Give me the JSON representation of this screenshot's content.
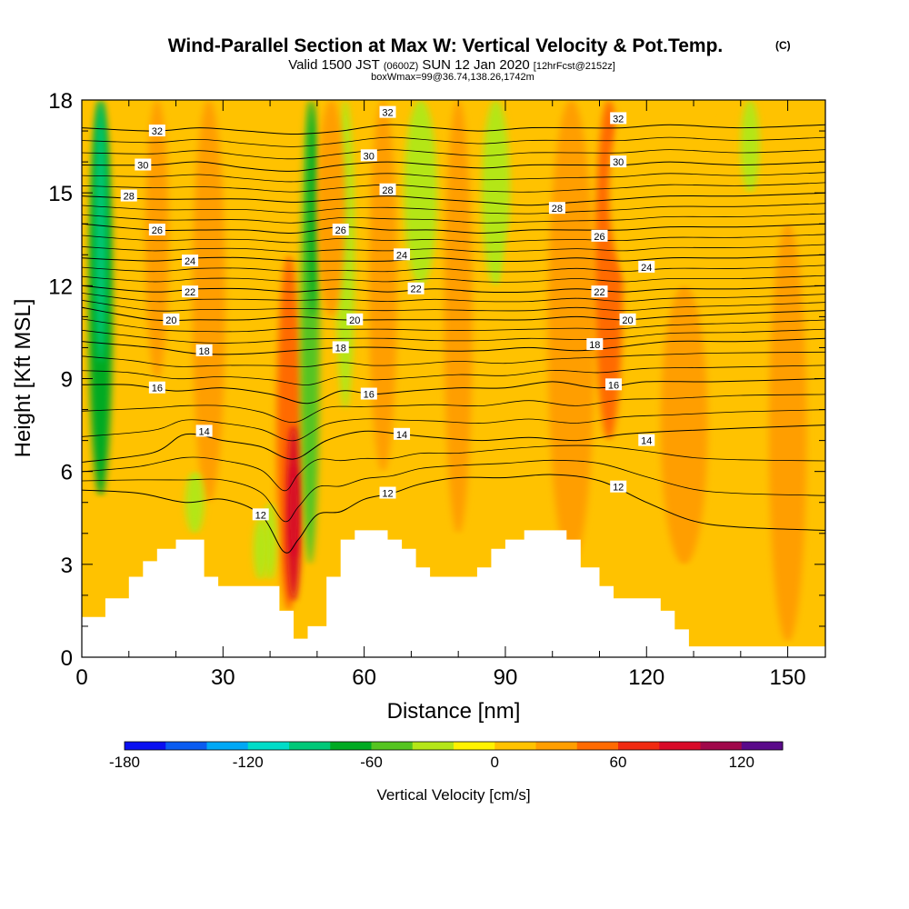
{
  "header": {
    "title": "Wind-Parallel Section at Max W: Vertical Velocity & Pot.Temp.",
    "copyright": "(C)",
    "valid_pre": "Valid 1500 JST",
    "valid_utc": "(0600Z)",
    "valid_date": "SUN 12 Jan 2020",
    "forecast": "[12hrFcst@2152z]",
    "box": "boxWmax=99@36.74,138.26,1742m"
  },
  "chart_data": {
    "type": "heatmap",
    "xlabel": "Distance [nm]",
    "ylabel": "Height [Kft MSL]",
    "xlim": [
      0,
      158
    ],
    "ylim": [
      0,
      18
    ],
    "x_ticks": [
      0,
      30,
      60,
      90,
      120,
      150
    ],
    "y_ticks": [
      0,
      3,
      6,
      9,
      12,
      15,
      18
    ],
    "colorbar": {
      "label": "Vertical Velocity [cm/s]",
      "min": -180,
      "max": 140,
      "step": 20,
      "tick_labels": [
        -180,
        -120,
        -60,
        0,
        60,
        120
      ],
      "colors": [
        "#0a10f0",
        "#0a5cf0",
        "#00a8f5",
        "#00dcc8",
        "#00c878",
        "#00aa22",
        "#55c420",
        "#b4e618",
        "#fff200",
        "#ffc200",
        "#ff9e00",
        "#ff6a00",
        "#f02a10",
        "#d80a28",
        "#a0084a",
        "#5a0a8a"
      ]
    },
    "terrain_profile": [
      [
        0,
        1.3
      ],
      [
        5,
        1.3
      ],
      [
        5,
        1.9
      ],
      [
        10,
        1.9
      ],
      [
        10,
        2.6
      ],
      [
        13,
        2.6
      ],
      [
        13,
        3.1
      ],
      [
        16,
        3.1
      ],
      [
        16,
        3.5
      ],
      [
        20,
        3.5
      ],
      [
        20,
        3.8
      ],
      [
        26,
        3.8
      ],
      [
        26,
        2.6
      ],
      [
        29,
        2.6
      ],
      [
        29,
        2.3
      ],
      [
        42,
        2.3
      ],
      [
        42,
        1.5
      ],
      [
        45,
        1.5
      ],
      [
        45,
        0.6
      ],
      [
        48,
        0.6
      ],
      [
        48,
        1.0
      ],
      [
        52,
        1.0
      ],
      [
        52,
        2.6
      ],
      [
        55,
        2.6
      ],
      [
        55,
        3.8
      ],
      [
        58,
        3.8
      ],
      [
        58,
        4.1
      ],
      [
        65,
        4.1
      ],
      [
        65,
        3.8
      ],
      [
        68,
        3.8
      ],
      [
        68,
        3.5
      ],
      [
        71,
        3.5
      ],
      [
        71,
        2.9
      ],
      [
        74,
        2.9
      ],
      [
        74,
        2.6
      ],
      [
        84,
        2.6
      ],
      [
        84,
        2.9
      ],
      [
        87,
        2.9
      ],
      [
        87,
        3.5
      ],
      [
        90,
        3.5
      ],
      [
        90,
        3.8
      ],
      [
        94,
        3.8
      ],
      [
        94,
        4.1
      ],
      [
        103,
        4.1
      ],
      [
        103,
        3.8
      ],
      [
        106,
        3.8
      ],
      [
        106,
        2.9
      ],
      [
        110,
        2.9
      ],
      [
        110,
        2.3
      ],
      [
        113,
        2.3
      ],
      [
        113,
        1.9
      ],
      [
        123,
        1.9
      ],
      [
        123,
        1.5
      ],
      [
        126,
        1.5
      ],
      [
        126,
        0.9
      ],
      [
        129,
        0.9
      ],
      [
        129,
        0.35
      ],
      [
        158,
        0.35
      ]
    ],
    "w_features": [
      {
        "x": 4,
        "w": 2.5,
        "y0": 5.2,
        "y1": 18,
        "value": -70
      },
      {
        "x": 4,
        "w": 1.2,
        "y0": 9.5,
        "y1": 18,
        "value": -100
      },
      {
        "x": 16,
        "w": 2.5,
        "y0": 9,
        "y1": 18,
        "value": 30
      },
      {
        "x": 27,
        "w": 3.5,
        "y0": 5,
        "y1": 18,
        "value": 30
      },
      {
        "x": 44,
        "w": 2.6,
        "y0": 1.5,
        "y1": 13,
        "value": 50
      },
      {
        "x": 45,
        "w": 1.5,
        "y0": 1.8,
        "y1": 7.5,
        "value": 80
      },
      {
        "x": 45,
        "w": 0.8,
        "y0": 3.2,
        "y1": 6.2,
        "value": 90
      },
      {
        "x": 48.5,
        "w": 2.0,
        "y0": 3,
        "y1": 18,
        "value": -60
      },
      {
        "x": 49,
        "w": 0.9,
        "y0": 11,
        "y1": 18,
        "value": -80
      },
      {
        "x": 40,
        "w": 1.4,
        "y0": 2.5,
        "y1": 5,
        "value": -40
      },
      {
        "x": 56,
        "w": 2.0,
        "y0": 8,
        "y1": 18,
        "value": -40
      },
      {
        "x": 53,
        "w": 3,
        "y0": 11,
        "y1": 18,
        "value": 30
      },
      {
        "x": 64,
        "w": 3,
        "y0": 6,
        "y1": 18,
        "value": 30
      },
      {
        "x": 72,
        "w": 3.5,
        "y0": 12,
        "y1": 18,
        "value": -30
      },
      {
        "x": 80,
        "w": 3,
        "y0": 4,
        "y1": 18,
        "value": 30
      },
      {
        "x": 88,
        "w": 3,
        "y0": 12,
        "y1": 18,
        "value": -30
      },
      {
        "x": 92,
        "w": 3,
        "y0": 6,
        "y1": 14,
        "value": 5
      },
      {
        "x": 104,
        "w": 5,
        "y0": 3,
        "y1": 18,
        "value": 30
      },
      {
        "x": 112,
        "w": 3,
        "y0": 7,
        "y1": 18,
        "value": 40
      },
      {
        "x": 128,
        "w": 5,
        "y0": 3,
        "y1": 12,
        "value": 30
      },
      {
        "x": 150,
        "w": 4,
        "y0": 0.5,
        "y1": 14,
        "value": 30
      },
      {
        "x": 140,
        "w": 6,
        "y0": 12,
        "y1": 18,
        "value": 5
      },
      {
        "x": 118,
        "w": 6,
        "y0": 12,
        "y1": 18,
        "value": 5
      },
      {
        "x": 142,
        "w": 2,
        "y0": 15,
        "y1": 18,
        "value": -30
      },
      {
        "x": 24,
        "w": 2,
        "y0": 4,
        "y1": 6,
        "value": -30
      },
      {
        "x": 38,
        "w": 1.5,
        "y0": 2.5,
        "y1": 4.5,
        "value": -40
      }
    ],
    "theta_contours": [
      {
        "level": 12,
        "pts": [
          [
            0,
            5.4
          ],
          [
            12,
            5.3
          ],
          [
            22,
            5.0
          ],
          [
            30,
            5.1
          ],
          [
            38,
            4.6
          ],
          [
            43,
            3.4
          ],
          [
            46,
            3.8
          ],
          [
            50,
            4.6
          ],
          [
            55,
            4.7
          ],
          [
            60,
            5.1
          ],
          [
            66,
            5.3
          ],
          [
            72,
            5.6
          ],
          [
            80,
            5.8
          ],
          [
            90,
            5.8
          ],
          [
            100,
            5.9
          ],
          [
            110,
            5.7
          ],
          [
            120,
            5.0
          ],
          [
            130,
            4.4
          ],
          [
            140,
            4.2
          ],
          [
            158,
            4.1
          ]
        ]
      },
      {
        "level": 14,
        "pts": [
          [
            0,
            6.3
          ],
          [
            15,
            6.6
          ],
          [
            22,
            7.2
          ],
          [
            30,
            7.0
          ],
          [
            38,
            6.8
          ],
          [
            45,
            6.4
          ],
          [
            52,
            7.0
          ],
          [
            60,
            7.3
          ],
          [
            68,
            7.2
          ],
          [
            75,
            7.1
          ],
          [
            85,
            7.0
          ],
          [
            95,
            7.1
          ],
          [
            105,
            7.0
          ],
          [
            115,
            7.2
          ],
          [
            125,
            7.3
          ],
          [
            140,
            7.4
          ],
          [
            158,
            7.5
          ]
        ]
      },
      {
        "level": 16,
        "pts": [
          [
            0,
            8.8
          ],
          [
            10,
            8.8
          ],
          [
            20,
            8.6
          ],
          [
            30,
            8.7
          ],
          [
            40,
            8.5
          ],
          [
            48,
            8.2
          ],
          [
            55,
            8.6
          ],
          [
            62,
            8.5
          ],
          [
            70,
            8.6
          ],
          [
            80,
            8.7
          ],
          [
            90,
            8.7
          ],
          [
            100,
            8.9
          ],
          [
            110,
            8.7
          ],
          [
            120,
            8.9
          ],
          [
            135,
            8.9
          ],
          [
            158,
            9.0
          ]
        ]
      },
      {
        "level": 18,
        "pts": [
          [
            0,
            10.2
          ],
          [
            15,
            10.0
          ],
          [
            25,
            9.8
          ],
          [
            35,
            9.8
          ],
          [
            45,
            9.9
          ],
          [
            55,
            10.0
          ],
          [
            65,
            10.0
          ],
          [
            75,
            9.9
          ],
          [
            85,
            9.9
          ],
          [
            95,
            10.0
          ],
          [
            105,
            9.9
          ],
          [
            113,
            10.0
          ],
          [
            125,
            10.2
          ],
          [
            140,
            10.2
          ],
          [
            158,
            10.3
          ]
        ]
      },
      {
        "level": 20,
        "pts": [
          [
            0,
            11.3
          ],
          [
            15,
            10.9
          ],
          [
            25,
            10.9
          ],
          [
            35,
            10.9
          ],
          [
            45,
            11.0
          ],
          [
            55,
            10.9
          ],
          [
            65,
            10.9
          ],
          [
            75,
            10.9
          ],
          [
            85,
            10.9
          ],
          [
            95,
            10.9
          ],
          [
            105,
            11.0
          ],
          [
            115,
            10.9
          ],
          [
            125,
            11.0
          ],
          [
            140,
            11.1
          ],
          [
            158,
            11.2
          ]
        ]
      },
      {
        "level": 22,
        "pts": [
          [
            0,
            12.0
          ],
          [
            15,
            11.8
          ],
          [
            25,
            11.9
          ],
          [
            35,
            11.9
          ],
          [
            45,
            11.8
          ],
          [
            55,
            11.9
          ],
          [
            65,
            11.8
          ],
          [
            75,
            11.9
          ],
          [
            85,
            11.8
          ],
          [
            95,
            11.8
          ],
          [
            105,
            11.9
          ],
          [
            115,
            11.8
          ],
          [
            125,
            11.9
          ],
          [
            140,
            11.9
          ],
          [
            158,
            12.0
          ]
        ]
      },
      {
        "level": 24,
        "pts": [
          [
            0,
            12.9
          ],
          [
            15,
            12.8
          ],
          [
            25,
            12.9
          ],
          [
            35,
            12.9
          ],
          [
            45,
            12.8
          ],
          [
            55,
            12.8
          ],
          [
            65,
            12.8
          ],
          [
            75,
            12.9
          ],
          [
            85,
            12.8
          ],
          [
            95,
            12.8
          ],
          [
            105,
            12.9
          ],
          [
            115,
            12.8
          ],
          [
            125,
            12.9
          ],
          [
            140,
            12.9
          ],
          [
            158,
            13.0
          ]
        ]
      },
      {
        "level": 26,
        "pts": [
          [
            0,
            14.0
          ],
          [
            15,
            13.8
          ],
          [
            25,
            13.8
          ],
          [
            35,
            13.8
          ],
          [
            45,
            13.7
          ],
          [
            55,
            13.9
          ],
          [
            65,
            13.8
          ],
          [
            75,
            13.8
          ],
          [
            85,
            13.7
          ],
          [
            95,
            13.8
          ],
          [
            105,
            13.8
          ],
          [
            115,
            13.8
          ],
          [
            125,
            13.9
          ],
          [
            140,
            13.9
          ],
          [
            158,
            14.0
          ]
        ]
      },
      {
        "level": 28,
        "pts": [
          [
            0,
            14.9
          ],
          [
            15,
            14.8
          ],
          [
            25,
            14.8
          ],
          [
            35,
            14.8
          ],
          [
            45,
            14.7
          ],
          [
            55,
            14.8
          ],
          [
            65,
            14.9
          ],
          [
            75,
            14.8
          ],
          [
            85,
            14.7
          ],
          [
            95,
            14.6
          ],
          [
            105,
            14.7
          ],
          [
            115,
            14.8
          ],
          [
            125,
            14.9
          ],
          [
            140,
            14.9
          ],
          [
            158,
            15.0
          ]
        ]
      },
      {
        "level": 30,
        "pts": [
          [
            0,
            15.9
          ],
          [
            15,
            15.9
          ],
          [
            25,
            16.0
          ],
          [
            35,
            15.8
          ],
          [
            45,
            15.7
          ],
          [
            55,
            15.9
          ],
          [
            65,
            16.0
          ],
          [
            75,
            15.9
          ],
          [
            85,
            15.8
          ],
          [
            95,
            15.9
          ],
          [
            105,
            15.9
          ],
          [
            115,
            15.9
          ],
          [
            125,
            16.0
          ],
          [
            140,
            15.9
          ],
          [
            158,
            16.0
          ]
        ]
      },
      {
        "level": 32,
        "pts": [
          [
            0,
            17.1
          ],
          [
            15,
            17.0
          ],
          [
            25,
            17.1
          ],
          [
            35,
            17.0
          ],
          [
            45,
            16.9
          ],
          [
            55,
            17.0
          ],
          [
            65,
            17.2
          ],
          [
            75,
            17.1
          ],
          [
            85,
            17.0
          ],
          [
            95,
            17.1
          ],
          [
            105,
            17.1
          ],
          [
            115,
            17.1
          ],
          [
            125,
            17.2
          ],
          [
            140,
            17.1
          ],
          [
            158,
            17.2
          ]
        ]
      }
    ],
    "theta_minor_offsets": [
      0.33,
      0.66
    ],
    "contour_labels": [
      {
        "text": "32",
        "x": 16,
        "y": 17.0
      },
      {
        "text": "32",
        "x": 65,
        "y": 17.6
      },
      {
        "text": "32",
        "x": 114,
        "y": 17.4
      },
      {
        "text": "30",
        "x": 13,
        "y": 15.9
      },
      {
        "text": "30",
        "x": 61,
        "y": 16.2
      },
      {
        "text": "30",
        "x": 114,
        "y": 16.0
      },
      {
        "text": "28",
        "x": 10,
        "y": 14.9
      },
      {
        "text": "28",
        "x": 65,
        "y": 15.1
      },
      {
        "text": "28",
        "x": 101,
        "y": 14.5
      },
      {
        "text": "26",
        "x": 16,
        "y": 13.8
      },
      {
        "text": "26",
        "x": 55,
        "y": 13.8
      },
      {
        "text": "26",
        "x": 110,
        "y": 13.6
      },
      {
        "text": "24",
        "x": 23,
        "y": 12.8
      },
      {
        "text": "24",
        "x": 68,
        "y": 13.0
      },
      {
        "text": "24",
        "x": 120,
        "y": 12.6
      },
      {
        "text": "22",
        "x": 23,
        "y": 11.8
      },
      {
        "text": "22",
        "x": 71,
        "y": 11.9
      },
      {
        "text": "22",
        "x": 110,
        "y": 11.8
      },
      {
        "text": "20",
        "x": 19,
        "y": 10.9
      },
      {
        "text": "20",
        "x": 58,
        "y": 10.9
      },
      {
        "text": "20",
        "x": 116,
        "y": 10.9
      },
      {
        "text": "18",
        "x": 26,
        "y": 9.9
      },
      {
        "text": "18",
        "x": 55,
        "y": 10.0
      },
      {
        "text": "18",
        "x": 109,
        "y": 10.1
      },
      {
        "text": "16",
        "x": 16,
        "y": 8.7
      },
      {
        "text": "16",
        "x": 61,
        "y": 8.5
      },
      {
        "text": "16",
        "x": 113,
        "y": 8.8
      },
      {
        "text": "14",
        "x": 26,
        "y": 7.3
      },
      {
        "text": "14",
        "x": 68,
        "y": 7.2
      },
      {
        "text": "14",
        "x": 120,
        "y": 7.0
      },
      {
        "text": "12",
        "x": 38,
        "y": 4.6
      },
      {
        "text": "12",
        "x": 65,
        "y": 5.3
      },
      {
        "text": "12",
        "x": 114,
        "y": 5.5
      }
    ]
  }
}
